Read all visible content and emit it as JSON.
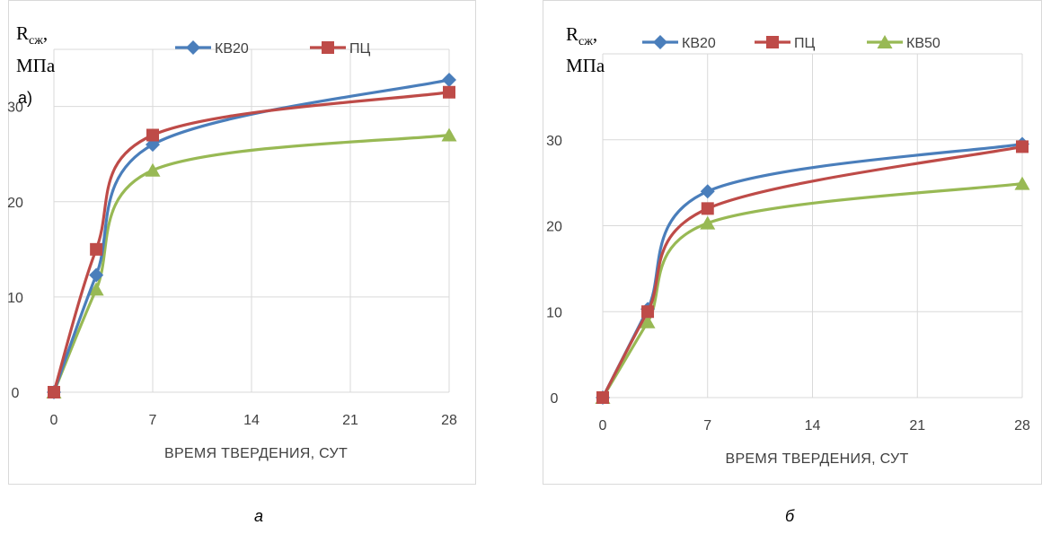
{
  "chart_data": [
    {
      "type": "line",
      "ylabel_main": "R",
      "ylabel_sub": "сж",
      "ylabel_tail": ",",
      "ylabel_unit": "МПа",
      "annotation": "а)",
      "xlabel": "ВРЕМЯ ТВЕРДЕНИЯ, СУТ",
      "caption": "а",
      "x_ticks": [
        0,
        7,
        14,
        21,
        28
      ],
      "y_ticks": [
        0,
        10,
        20,
        30
      ],
      "xlim": [
        0,
        28
      ],
      "ylim": [
        0,
        36
      ],
      "grid": true,
      "legend_position": "top",
      "legend_series": [
        0,
        1
      ],
      "series": [
        {
          "name": "КВ20",
          "color": "#4a7ebb",
          "marker": "diamond",
          "x": [
            0,
            3,
            7,
            28
          ],
          "y": [
            0,
            12.3,
            26,
            32.8
          ]
        },
        {
          "name": "ПЦ",
          "color": "#be4b48",
          "marker": "square",
          "x": [
            0,
            3,
            7,
            28
          ],
          "y": [
            0,
            15,
            27,
            31.5
          ]
        },
        {
          "name": "",
          "color": "#98b954",
          "marker": "triangle",
          "x": [
            0,
            3,
            7,
            28
          ],
          "y": [
            0,
            10.8,
            23.3,
            27
          ]
        }
      ]
    },
    {
      "type": "line",
      "ylabel_main": "R",
      "ylabel_sub": "сж",
      "ylabel_tail": ",",
      "ylabel_unit": "МПа",
      "annotation": "",
      "xlabel": "ВРЕМЯ ТВЕРДЕНИЯ, СУТ",
      "caption": "б",
      "x_ticks": [
        0,
        7,
        14,
        21,
        28
      ],
      "y_ticks": [
        0,
        10,
        20,
        30
      ],
      "xlim": [
        0,
        28
      ],
      "ylim": [
        0,
        40
      ],
      "grid": true,
      "legend_position": "top",
      "legend_series": [
        0,
        1,
        2
      ],
      "series": [
        {
          "name": "КВ20",
          "color": "#4a7ebb",
          "marker": "diamond",
          "x": [
            0,
            3,
            7,
            28
          ],
          "y": [
            0,
            10.3,
            24,
            29.5
          ]
        },
        {
          "name": "ПЦ",
          "color": "#be4b48",
          "marker": "square",
          "x": [
            0,
            3,
            7,
            28
          ],
          "y": [
            0,
            10,
            22,
            29.2
          ]
        },
        {
          "name": "КВ50",
          "color": "#98b954",
          "marker": "triangle",
          "x": [
            0,
            3,
            7,
            28
          ],
          "y": [
            0,
            8.8,
            20.3,
            24.9
          ]
        }
      ]
    }
  ]
}
